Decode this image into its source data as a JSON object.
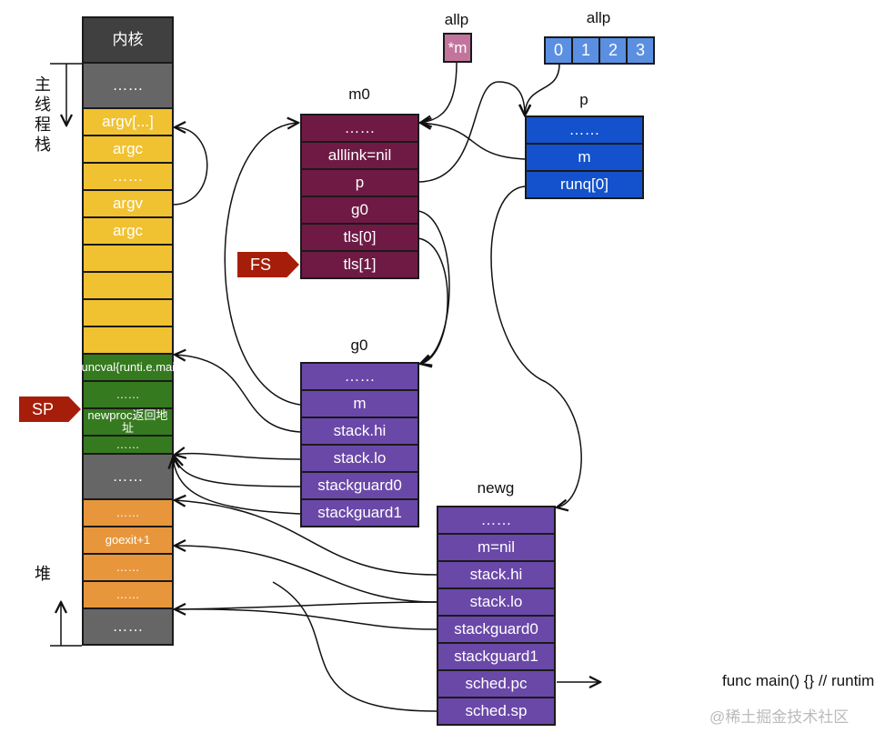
{
  "colors": {
    "kernel": "#404040",
    "gray": "#666666",
    "yellow": "#f0c232",
    "green": "#367a1f",
    "orange": "#e8963c",
    "m0": "#6e1a45",
    "g": "#6a48a8",
    "p": "#1352cc",
    "allp_cell": "#5b8fe2",
    "m_ptr": "#c3749d",
    "tag": "#a61e0a"
  },
  "labels": {
    "main_thread_stack": "主线程栈",
    "heap": "堆",
    "m0": "m0",
    "g0": "g0",
    "newg": "newg",
    "p": "p",
    "allp_m": "allp",
    "allp_p": "allp",
    "fs": "FS",
    "sp": "SP",
    "func_main": "func main() {} // runtime.main",
    "watermark": "@稀土掘金技术社区"
  },
  "stack": [
    {
      "text": "内核",
      "color": "kernel",
      "h": 50
    },
    {
      "text": "……",
      "color": "gray",
      "h": 50
    },
    {
      "text": "argv[...]",
      "color": "yellow",
      "h": 30
    },
    {
      "text": "argc",
      "color": "yellow",
      "h": 30
    },
    {
      "text": "……",
      "color": "yellow",
      "h": 30
    },
    {
      "text": "argv",
      "color": "yellow",
      "h": 30
    },
    {
      "text": "argc",
      "color": "yellow",
      "h": 30
    },
    {
      "text": "",
      "color": "yellow",
      "h": 30
    },
    {
      "text": "",
      "color": "yellow",
      "h": 30
    },
    {
      "text": "",
      "color": "yellow",
      "h": 30
    },
    {
      "text": "",
      "color": "yellow",
      "h": 30
    },
    {
      "text": "&funcval{runti.e.main}",
      "color": "green",
      "h": 30,
      "small": true
    },
    {
      "text": "……",
      "color": "green",
      "h": 30,
      "small": true
    },
    {
      "text": "newproc返回地址",
      "color": "green",
      "h": 30,
      "small": true
    },
    {
      "text": "……",
      "color": "green",
      "h": 20,
      "small": true
    },
    {
      "text": "……",
      "color": "gray",
      "h": 50
    },
    {
      "text": "……",
      "color": "orange",
      "h": 30,
      "small": true
    },
    {
      "text": "goexit+1",
      "color": "orange",
      "h": 30,
      "small": true
    },
    {
      "text": "……",
      "color": "orange",
      "h": 30,
      "small": true
    },
    {
      "text": "……",
      "color": "orange",
      "h": 30,
      "small": true
    },
    {
      "text": "……",
      "color": "gray",
      "h": 40
    }
  ],
  "m0": [
    "……",
    "alllink=nil",
    "p",
    "g0",
    "tls[0]",
    "tls[1]"
  ],
  "g0": [
    "……",
    "m",
    "stack.hi",
    "stack.lo",
    "stackguard0",
    "stackguard1"
  ],
  "newg": [
    "……",
    "m=nil",
    "stack.hi",
    "stack.lo",
    "stackguard0",
    "stackguard1",
    "sched.pc",
    "sched.sp"
  ],
  "p": [
    "……",
    "m",
    "runq[0]"
  ],
  "allp_m": [
    "*m"
  ],
  "allp_p": [
    "0",
    "1",
    "2",
    "3"
  ]
}
